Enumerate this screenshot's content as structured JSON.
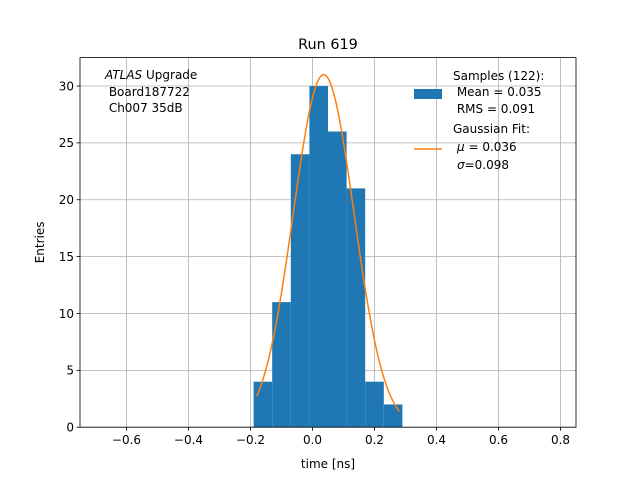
{
  "chart_data": {
    "type": "bar",
    "title": "Run 619",
    "xlabel": "time [ns]",
    "ylabel": "Entries",
    "xlim": [
      -0.75,
      0.85
    ],
    "ylim": [
      0,
      32.5
    ],
    "xticks": [
      -0.6,
      -0.4,
      -0.2,
      0.0,
      0.2,
      0.4,
      0.6,
      0.8
    ],
    "xtick_labels": [
      "−0.6",
      "−0.4",
      "−0.2",
      "0.0",
      "0.2",
      "0.4",
      "0.6",
      "0.8"
    ],
    "yticks": [
      0,
      5,
      10,
      15,
      20,
      25,
      30
    ],
    "ytick_labels": [
      "0",
      "5",
      "10",
      "15",
      "20",
      "25",
      "30"
    ],
    "grid": true,
    "bins": [
      {
        "x0": -0.19,
        "x1": -0.13,
        "value": 4
      },
      {
        "x0": -0.13,
        "x1": -0.07,
        "value": 11
      },
      {
        "x0": -0.07,
        "x1": -0.01,
        "value": 24
      },
      {
        "x0": -0.01,
        "x1": 0.05,
        "value": 30
      },
      {
        "x0": 0.05,
        "x1": 0.11,
        "value": 26
      },
      {
        "x0": 0.11,
        "x1": 0.17,
        "value": 21
      },
      {
        "x0": 0.17,
        "x1": 0.23,
        "value": 4
      },
      {
        "x0": 0.23,
        "x1": 0.29,
        "value": 2
      }
    ],
    "fit": {
      "amplitude": 31,
      "mu": 0.036,
      "sigma": 0.098,
      "x_range": [
        -0.18,
        0.28
      ]
    },
    "annotation": {
      "italic": "ATLAS",
      "rest": " Upgrade",
      "line2": " Board187722",
      "line3": " Ch007 35dB"
    },
    "legend": {
      "position": "top-right",
      "samples_label": "Samples (122):",
      "samples_mean": " Mean = 0.035",
      "samples_rms": " RMS = 0.091",
      "fit_label": "Gaussian Fit:",
      "fit_mu_symbol": "μ",
      "fit_mu_value": " = 0.036",
      "fit_sigma_symbol": "σ",
      "fit_sigma_value": "=0.098"
    },
    "colors": {
      "bars": "#1f77b4",
      "fit": "#ff7f0e",
      "grid": "#b0b0b0"
    }
  }
}
